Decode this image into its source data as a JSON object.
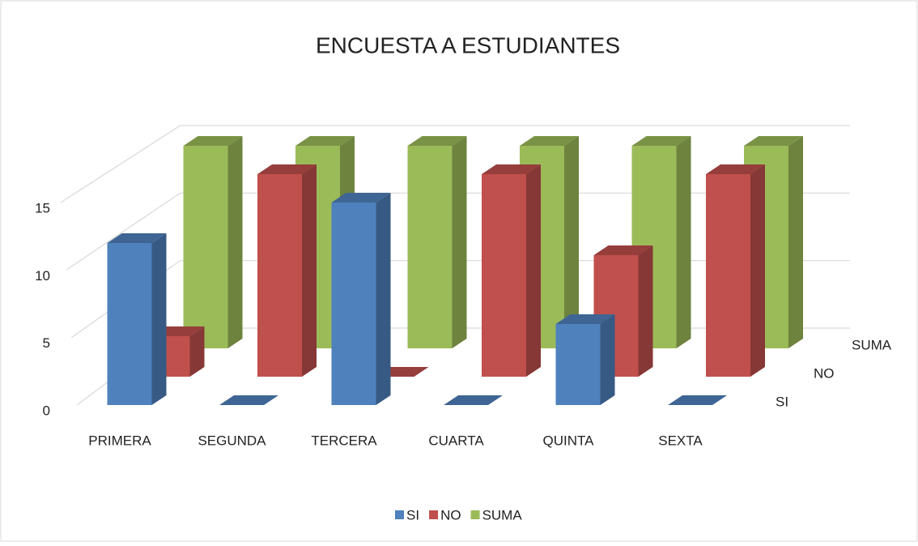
{
  "chart_data": {
    "type": "bar3d",
    "title": "ENCUESTA A ESTUDIANTES",
    "categories": [
      "PRIMERA",
      "SEGUNDA",
      "TERCERA",
      "CUARTA",
      "QUINTA",
      "SEXTA"
    ],
    "series": [
      {
        "name": "SI",
        "color": "#4f81bd",
        "values": [
          12,
          0,
          15,
          0,
          6,
          0
        ]
      },
      {
        "name": "NO",
        "color": "#c0504d",
        "values": [
          3,
          15,
          0,
          15,
          9,
          15
        ]
      },
      {
        "name": "SUMA",
        "color": "#9bbb59",
        "values": [
          15,
          15,
          15,
          15,
          15,
          15
        ]
      }
    ],
    "ylim": [
      0,
      15
    ],
    "yticks": [
      0,
      5,
      10,
      15
    ],
    "grid": true,
    "legend": "bottom"
  }
}
